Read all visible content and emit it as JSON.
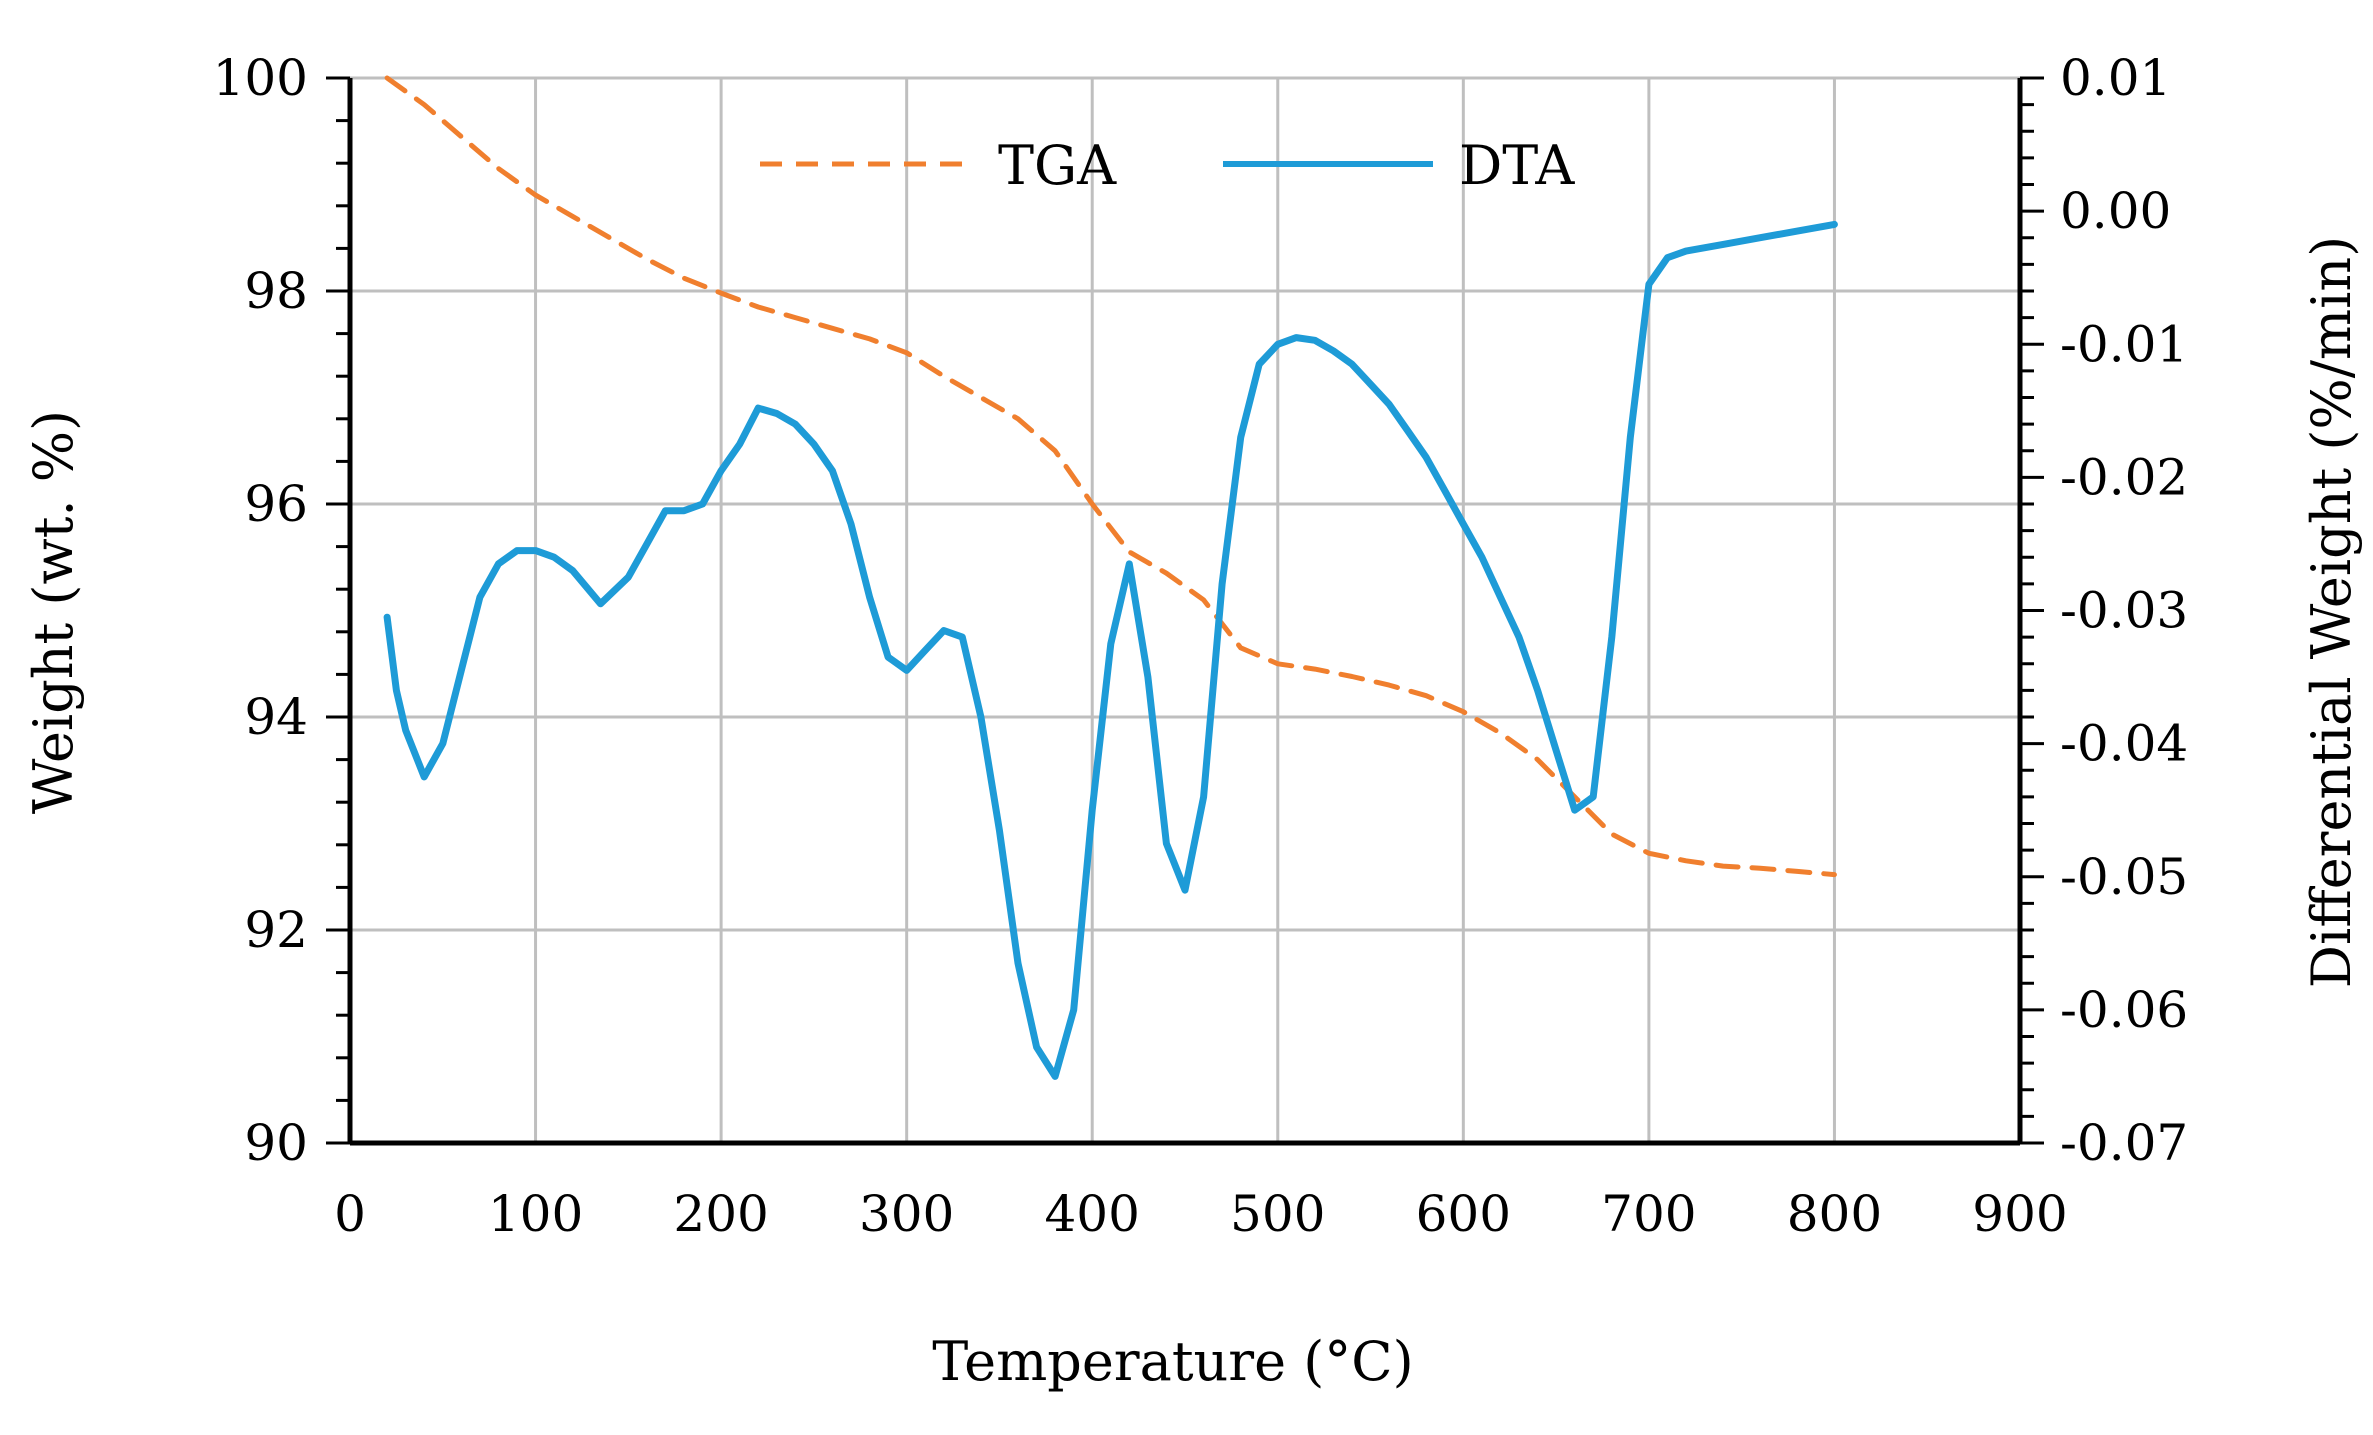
{
  "chart_data": {
    "type": "line",
    "title": "",
    "xlabel": "Temperature (°C)",
    "ylabel": "Weight (wt. %)",
    "y2label": "Differential Weight (%/min)",
    "xlim": [
      0,
      900
    ],
    "ylim": [
      90,
      100
    ],
    "y2lim": [
      -0.07,
      0.01
    ],
    "grid": true,
    "legend_position": "top-center",
    "x_ticks": [
      0,
      100,
      200,
      300,
      400,
      500,
      600,
      700,
      800,
      900
    ],
    "x_tick_labels": [
      "0",
      "100",
      "200",
      "300",
      "400",
      "500",
      "600",
      "700",
      "800",
      "900"
    ],
    "y_ticks": [
      90,
      92,
      94,
      96,
      98,
      100
    ],
    "y_tick_labels": [
      "90",
      "92",
      "94",
      "96",
      "98",
      "100"
    ],
    "y2_ticks": [
      0.01,
      0.0,
      -0.01,
      -0.02,
      -0.03,
      -0.04,
      -0.05,
      -0.06,
      -0.07
    ],
    "y2_tick_labels": [
      "0.01",
      "0.00",
      "-0.01",
      "-0.02",
      "-0.03",
      "-0.04",
      "-0.05",
      "-0.06",
      "-0.07"
    ],
    "series": [
      {
        "name": "TGA",
        "axis": "left",
        "color": "#F07F2E",
        "style": "dashed",
        "x": [
          20,
          40,
          60,
          80,
          100,
          120,
          140,
          160,
          180,
          200,
          220,
          240,
          260,
          280,
          300,
          320,
          340,
          360,
          380,
          400,
          420,
          440,
          460,
          480,
          500,
          520,
          540,
          560,
          580,
          600,
          620,
          640,
          660,
          680,
          700,
          720,
          740,
          760,
          780,
          800
        ],
        "values": [
          100.0,
          99.75,
          99.45,
          99.15,
          98.9,
          98.7,
          98.5,
          98.3,
          98.12,
          97.98,
          97.85,
          97.75,
          97.65,
          97.55,
          97.42,
          97.2,
          97.0,
          96.8,
          96.5,
          96.0,
          95.55,
          95.35,
          95.1,
          94.65,
          94.5,
          94.45,
          94.38,
          94.3,
          94.2,
          94.05,
          93.85,
          93.6,
          93.25,
          92.9,
          92.72,
          92.65,
          92.6,
          92.58,
          92.55,
          92.52
        ]
      },
      {
        "name": "DTA",
        "axis": "right",
        "color": "#1E9BD7",
        "style": "solid",
        "x": [
          20,
          25,
          30,
          40,
          50,
          60,
          70,
          80,
          90,
          100,
          110,
          120,
          135,
          150,
          160,
          170,
          180,
          190,
          200,
          210,
          220,
          230,
          240,
          250,
          260,
          270,
          280,
          290,
          300,
          310,
          320,
          330,
          340,
          350,
          360,
          370,
          380,
          390,
          400,
          410,
          420,
          430,
          440,
          450,
          460,
          470,
          480,
          490,
          500,
          510,
          520,
          530,
          540,
          550,
          560,
          570,
          580,
          590,
          600,
          610,
          620,
          630,
          640,
          650,
          660,
          670,
          680,
          690,
          700,
          710,
          720,
          740,
          760,
          780,
          800
        ],
        "values": [
          -0.0305,
          -0.036,
          -0.039,
          -0.0425,
          -0.04,
          -0.0345,
          -0.029,
          -0.0265,
          -0.0255,
          -0.0255,
          -0.026,
          -0.027,
          -0.0295,
          -0.0275,
          -0.025,
          -0.0225,
          -0.0225,
          -0.022,
          -0.0195,
          -0.0175,
          -0.0148,
          -0.0152,
          -0.016,
          -0.0175,
          -0.0195,
          -0.0235,
          -0.029,
          -0.0335,
          -0.0345,
          -0.033,
          -0.0315,
          -0.032,
          -0.038,
          -0.0465,
          -0.0565,
          -0.0628,
          -0.065,
          -0.06,
          -0.045,
          -0.0325,
          -0.0265,
          -0.035,
          -0.0475,
          -0.051,
          -0.044,
          -0.028,
          -0.017,
          -0.0115,
          -0.01,
          -0.0095,
          -0.0097,
          -0.0105,
          -0.0115,
          -0.013,
          -0.0145,
          -0.0165,
          -0.0185,
          -0.021,
          -0.0235,
          -0.026,
          -0.029,
          -0.032,
          -0.036,
          -0.0405,
          -0.045,
          -0.044,
          -0.032,
          -0.017,
          -0.0055,
          -0.0035,
          -0.003,
          -0.0025,
          -0.002,
          -0.0015,
          -0.001
        ]
      }
    ]
  }
}
